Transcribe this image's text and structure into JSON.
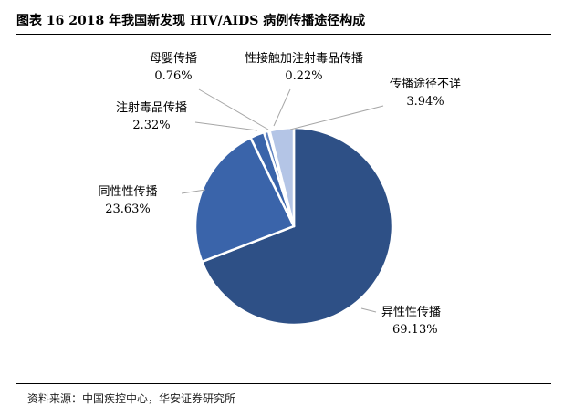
{
  "figure": {
    "title": "图表 16 2018 年我国新发现 HIV/AIDS 病例传播途径构成",
    "source": "资料来源：中国疾控中心，华安证券研究所"
  },
  "chart_data": {
    "type": "pie",
    "title": "2018 年我国新发现 HIV/AIDS 病例传播途径构成",
    "slices": [
      {
        "name": "异性性传播",
        "value": 69.13,
        "label": "69.13%",
        "color": "#2E5086"
      },
      {
        "name": "同性性传播",
        "value": 23.63,
        "label": "23.63%",
        "color": "#3A64AA"
      },
      {
        "name": "注射毒品传播",
        "value": 2.32,
        "label": "2.32%",
        "color": "#3A64AA"
      },
      {
        "name": "母婴传播",
        "value": 0.76,
        "label": "0.76%",
        "color": "#5F82C0"
      },
      {
        "name": "性接触加注射毒品传播",
        "value": 0.22,
        "label": "0.22%",
        "color": "#8FA8D6"
      },
      {
        "name": "传播途径不详",
        "value": 3.94,
        "label": "3.94%",
        "color": "#B4C5E6"
      }
    ],
    "start_angle_deg": 0,
    "direction": "clockwise",
    "label_style": "outside with leader lines"
  }
}
